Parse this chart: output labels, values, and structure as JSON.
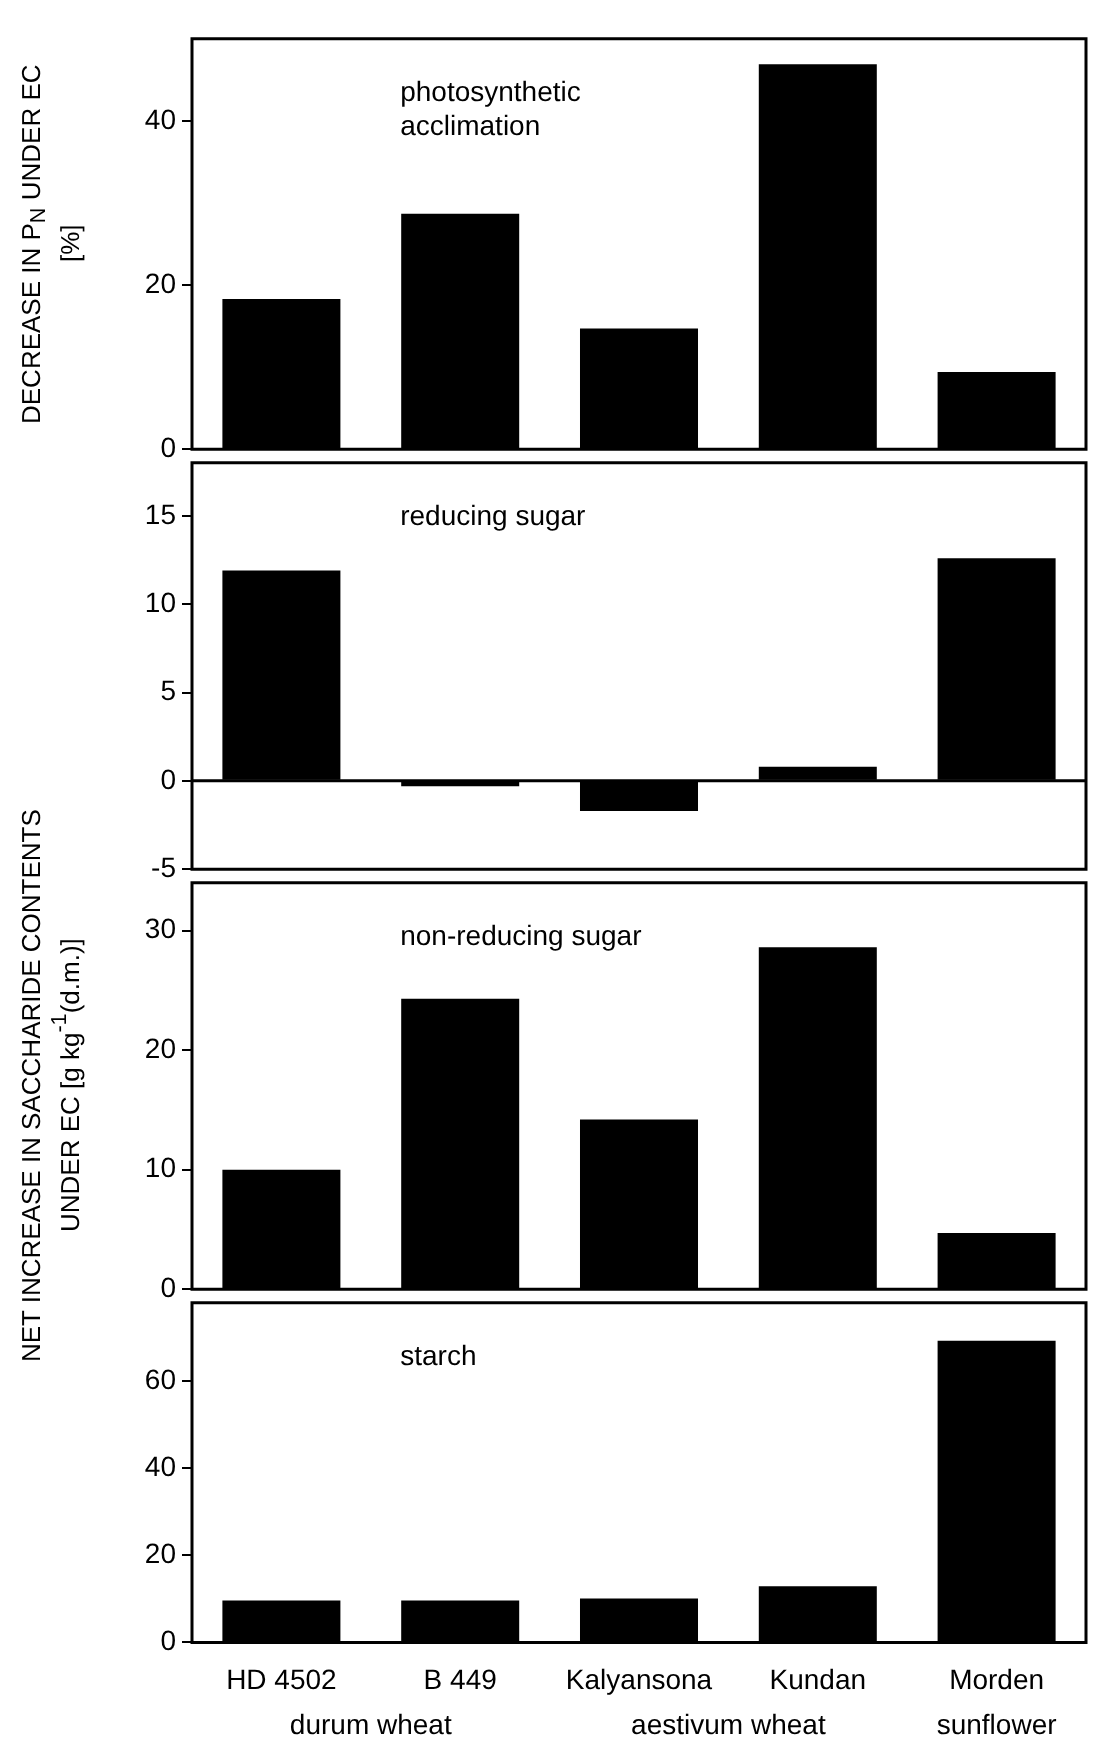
{
  "chart_data": [
    {
      "type": "bar",
      "title": "photosynthetic acclimation",
      "ylabel": "DECREASE IN P$_{N}$ UNDER EC [%]",
      "values": [
        18.3,
        28.7,
        14.7,
        46.9,
        9.4
      ],
      "color": "#000000",
      "ylim": [
        0,
        50
      ],
      "yticks": [
        0,
        20,
        40
      ],
      "tick_labels": "y"
    },
    {
      "type": "bar",
      "title": "reducing sugar",
      "values": [
        11.9,
        -0.3,
        -1.7,
        0.8,
        12.6
      ],
      "color": "#000000",
      "ylim": [
        -5,
        18
      ],
      "yticks": [
        -5,
        0,
        5,
        10,
        15
      ],
      "tick_labels": "y",
      "ref_lines": [
        {
          "axis": "y",
          "value": 0,
          "color": "#000000"
        }
      ]
    },
    {
      "type": "bar",
      "title": "non-reducing sugar",
      "ylabel": "NET INCREASE IN SACCHARIDE CONTENTS UNDER EC [g kg$^{-1}$(d.m.)]",
      "values": [
        10.0,
        24.3,
        14.2,
        28.6,
        4.7
      ],
      "color": "#000000",
      "ylim": [
        0,
        34
      ],
      "yticks": [
        0,
        10,
        20,
        30
      ],
      "tick_labels": "y"
    },
    {
      "type": "bar",
      "title": "starch",
      "categories": [
        "HD 4502",
        "B 449",
        "Kalyansona",
        "Kundan",
        "Morden"
      ],
      "values": [
        9.6,
        9.6,
        10.1,
        12.9,
        69.3
      ],
      "color": "#000000",
      "ylim": [
        0,
        78
      ],
      "yticks": [
        0,
        20,
        40,
        60
      ],
      "annotations": [
        "durum wheat",
        "aestivum wheat",
        "sunflower"
      ]
    }
  ]
}
